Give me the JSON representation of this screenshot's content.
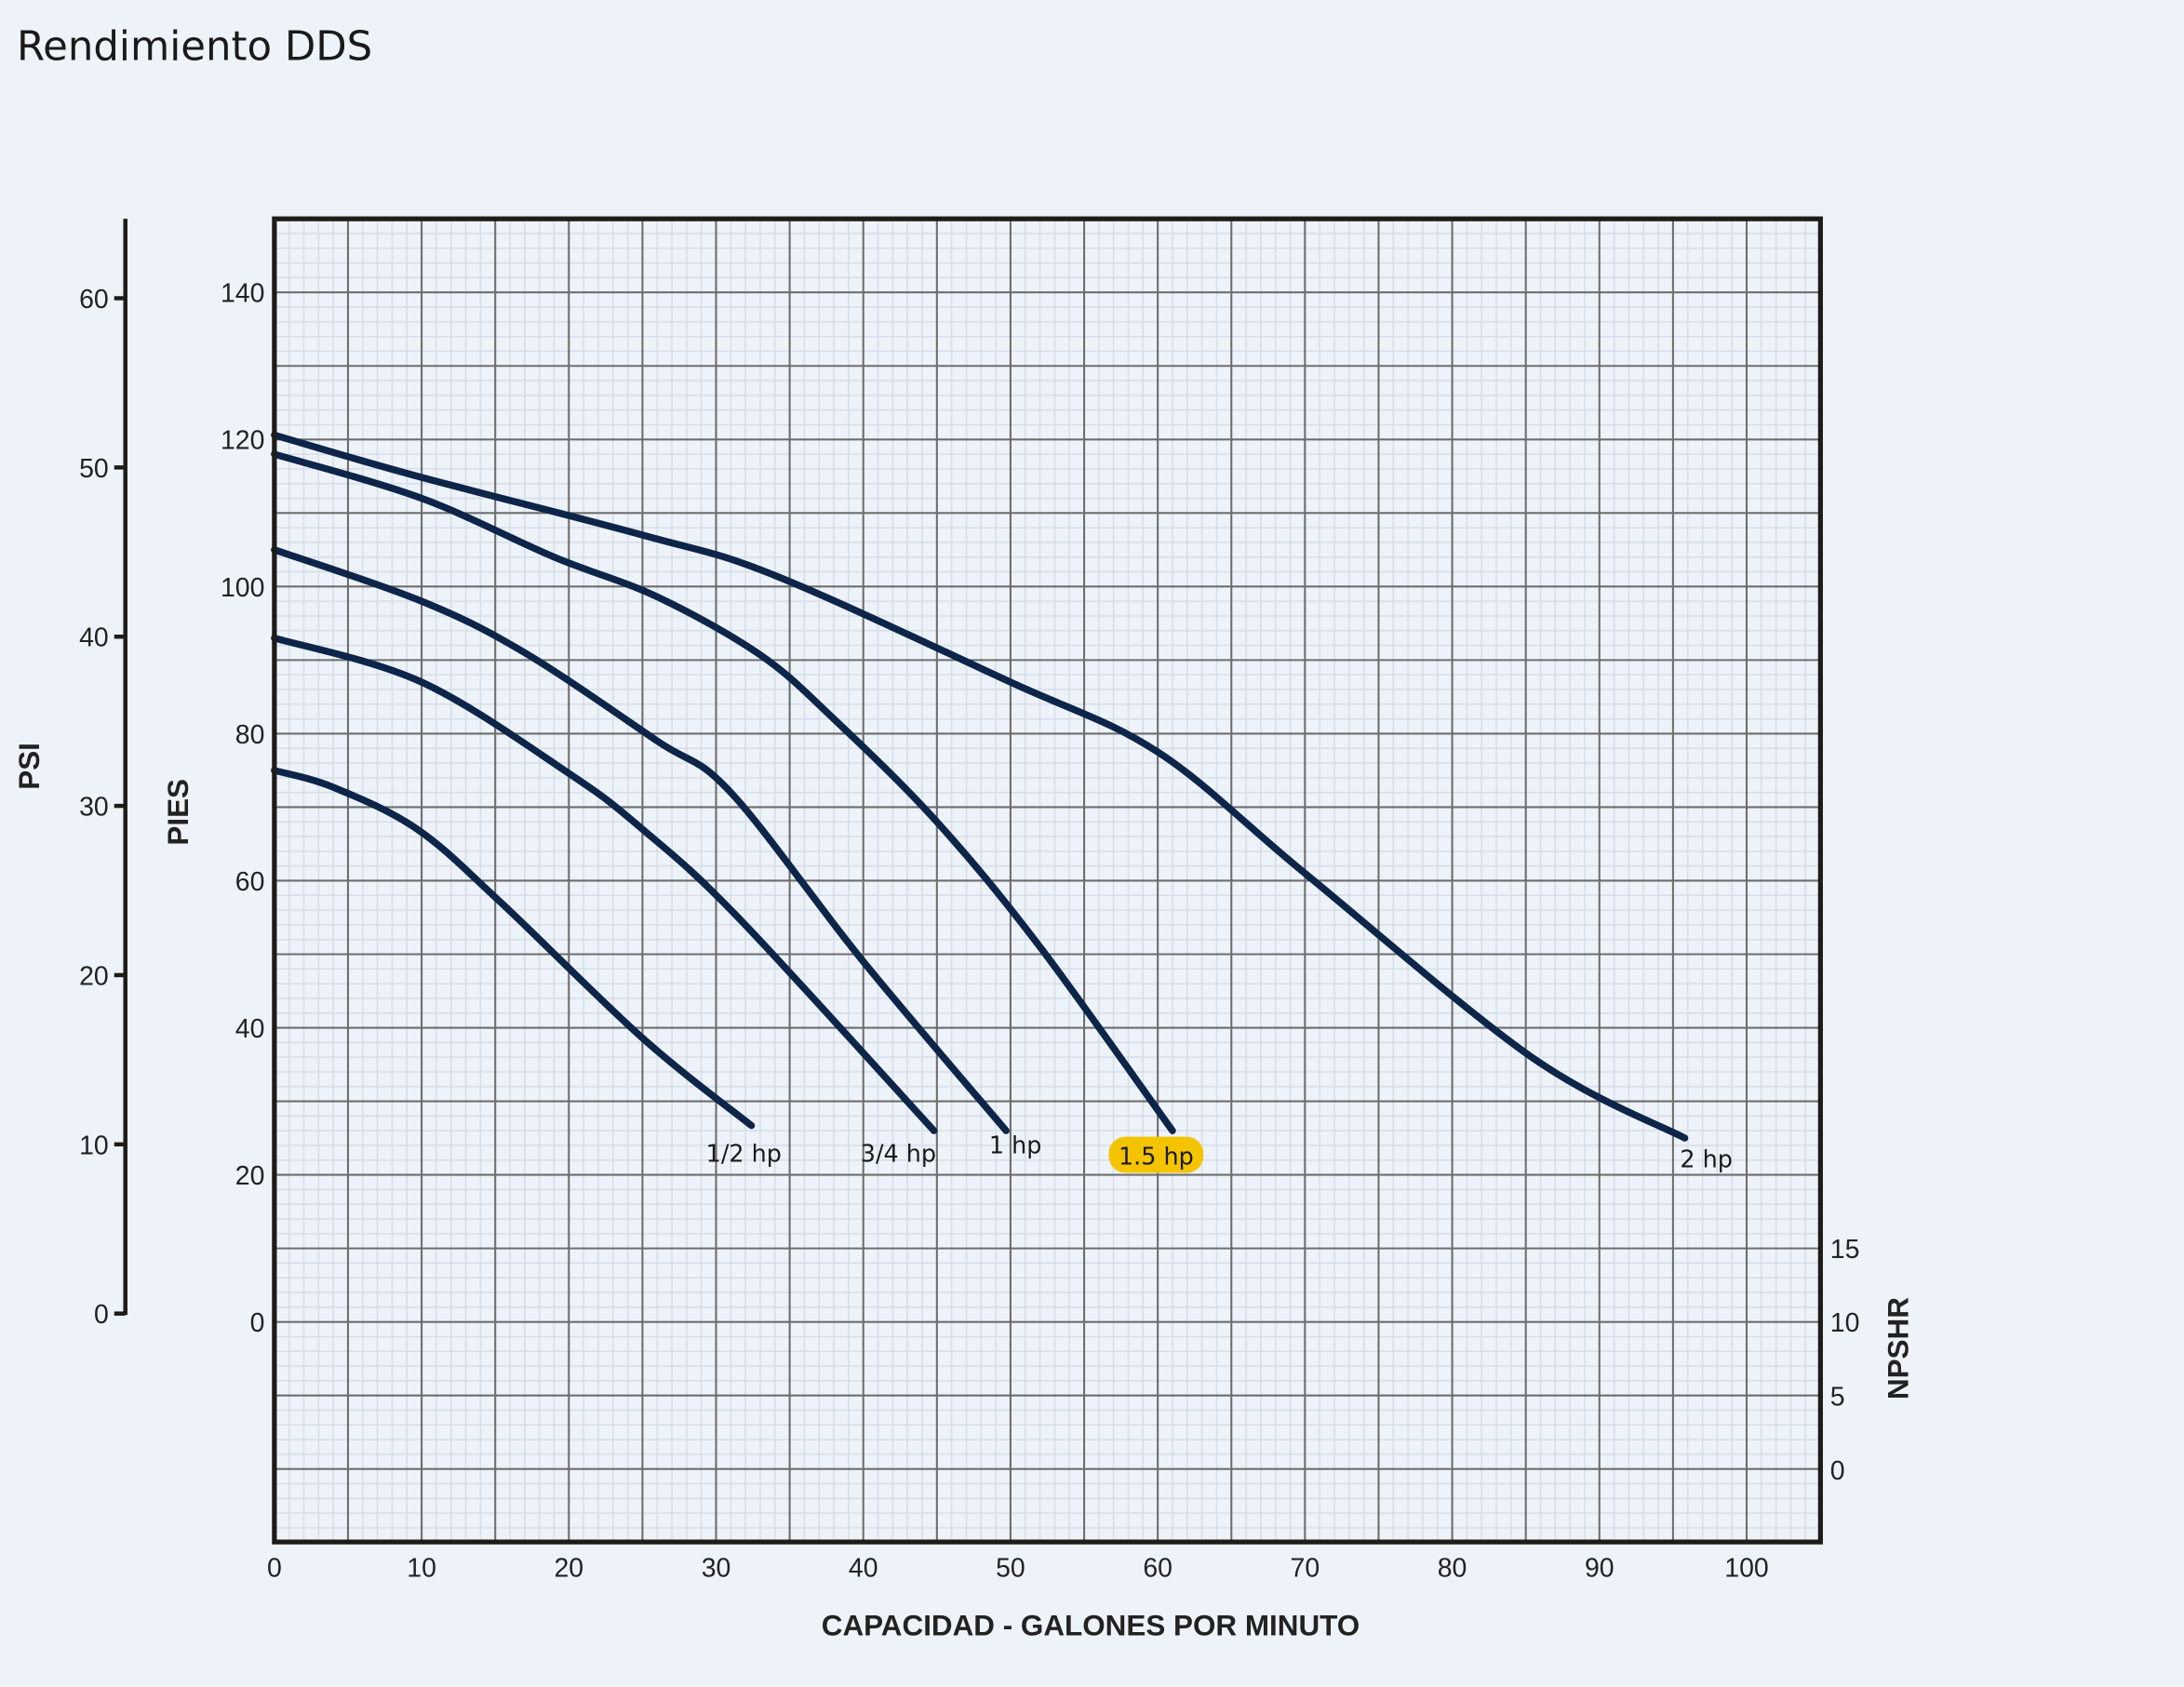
{
  "title": "Rendimiento DDS",
  "chart_data": {
    "type": "line",
    "title": "Rendimiento DDS",
    "xlabel": "CAPACIDAD - GALONES POR MINUTO",
    "ylabel": "PIES",
    "ylabel_left_outer": "PSI",
    "ylabel_right": "NPSHR",
    "xlim": [
      0,
      105
    ],
    "ylim": [
      -30,
      150
    ],
    "grid": true,
    "x_ticks": [
      "0",
      "10",
      "20",
      "30",
      "40",
      "50",
      "60",
      "70",
      "80",
      "90",
      "100"
    ],
    "y_ticks": [
      "0",
      "20",
      "40",
      "60",
      "80",
      "100",
      "120",
      "140"
    ],
    "psi_ticks": [
      "0",
      "10",
      "20",
      "30",
      "40",
      "50",
      "60"
    ],
    "npshr_ticks": [
      "0",
      "5",
      "10",
      "15"
    ],
    "highlight_color": "#f5c400",
    "line_color": "#0d2548",
    "series": [
      {
        "name": "1/2 hp",
        "x": [
          0,
          4,
          9.7,
          15.4,
          25,
          32.4
        ],
        "y": [
          75,
          72.7,
          67,
          57,
          38.6,
          26.7
        ],
        "highlight": false
      },
      {
        "name": "3/4 hp",
        "x": [
          0,
          10,
          20,
          25,
          31.5,
          44.8
        ],
        "y": [
          93,
          87,
          74.6,
          67,
          55,
          26
        ],
        "highlight": false
      },
      {
        "name": "1 hp",
        "x": [
          0,
          10,
          17,
          26,
          31,
          40,
          49.7
        ],
        "y": [
          105,
          98,
          91,
          79,
          72,
          49,
          26
        ],
        "highlight": false
      },
      {
        "name": "1.5 hp",
        "x": [
          0,
          10,
          19,
          26,
          33,
          38,
          45,
          52,
          61
        ],
        "y": [
          118,
          112,
          104,
          98.6,
          90.7,
          82,
          68,
          51,
          26
        ],
        "highlight": true
      },
      {
        "name": "2 hp",
        "x": [
          0,
          9.7,
          25,
          34,
          50,
          60,
          70,
          85.4,
          95.8
        ],
        "y": [
          120.6,
          115,
          107,
          101.5,
          87,
          77.5,
          61,
          36,
          25
        ],
        "highlight": false
      }
    ]
  }
}
